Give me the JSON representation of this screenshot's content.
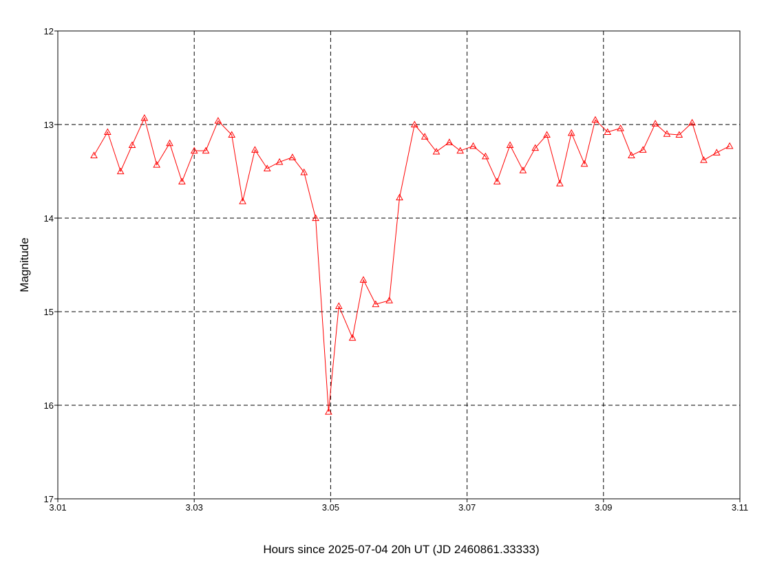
{
  "chart_data": {
    "type": "line",
    "xlabel": "Hours since 2025-07-04 20h UT (JD 2460861.33333)",
    "ylabel": "Magnitude",
    "xlim": [
      3.01,
      3.11
    ],
    "ylim": [
      17,
      12
    ],
    "y_axis_inverted": true,
    "grid": true,
    "grid_style": "dashed",
    "legend": "none",
    "x_ticks": [
      "3.01",
      "3.03",
      "3.05",
      "3.07",
      "3.09",
      "3.11"
    ],
    "y_ticks": [
      "12",
      "13",
      "14",
      "15",
      "16",
      "17"
    ],
    "series": [
      {
        "color": "#ff0000",
        "marker": "triangle-open",
        "points": [
          [
            3.0153,
            13.33
          ],
          [
            3.0173,
            13.08
          ],
          [
            3.0192,
            13.5
          ],
          [
            3.0209,
            13.22
          ],
          [
            3.0227,
            12.93
          ],
          [
            3.0245,
            13.43
          ],
          [
            3.0264,
            13.2
          ],
          [
            3.0282,
            13.61
          ],
          [
            3.03,
            13.28
          ],
          [
            3.0317,
            13.28
          ],
          [
            3.0335,
            12.96
          ],
          [
            3.0355,
            13.11
          ],
          [
            3.0371,
            13.82
          ],
          [
            3.0389,
            13.27
          ],
          [
            3.0407,
            13.47
          ],
          [
            3.0425,
            13.4
          ],
          [
            3.0444,
            13.35
          ],
          [
            3.0461,
            13.51
          ],
          [
            3.0478,
            14.0
          ],
          [
            3.0497,
            16.07
          ],
          [
            3.0512,
            14.94
          ],
          [
            3.0532,
            15.28
          ],
          [
            3.0548,
            14.66
          ],
          [
            3.0566,
            14.92
          ],
          [
            3.0586,
            14.88
          ],
          [
            3.0601,
            13.78
          ],
          [
            3.0623,
            13.0
          ],
          [
            3.0638,
            13.13
          ],
          [
            3.0655,
            13.29
          ],
          [
            3.0674,
            13.19
          ],
          [
            3.069,
            13.28
          ],
          [
            3.0709,
            13.23
          ],
          [
            3.0727,
            13.34
          ],
          [
            3.0744,
            13.61
          ],
          [
            3.0763,
            13.22
          ],
          [
            3.0782,
            13.49
          ],
          [
            3.08,
            13.25
          ],
          [
            3.0817,
            13.11
          ],
          [
            3.0836,
            13.63
          ],
          [
            3.0853,
            13.09
          ],
          [
            3.0872,
            13.42
          ],
          [
            3.0888,
            12.95
          ],
          [
            3.0906,
            13.08
          ],
          [
            3.0925,
            13.04
          ],
          [
            3.0941,
            13.33
          ],
          [
            3.0958,
            13.27
          ],
          [
            3.0976,
            12.99
          ],
          [
            3.0993,
            13.1
          ],
          [
            3.1011,
            13.11
          ],
          [
            3.103,
            12.98
          ],
          [
            3.1047,
            13.38
          ],
          [
            3.1066,
            13.3
          ],
          [
            3.1085,
            13.23
          ]
        ]
      }
    ]
  }
}
